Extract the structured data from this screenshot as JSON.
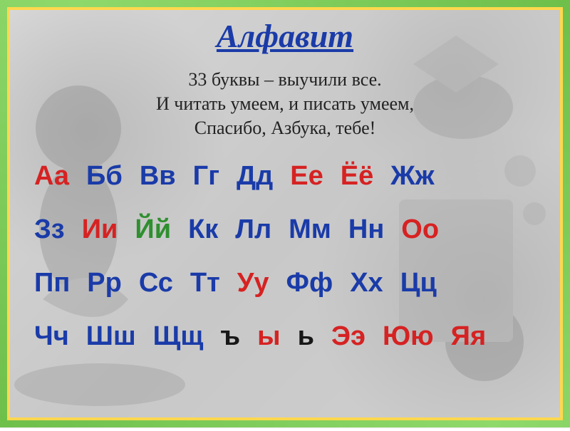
{
  "colors": {
    "red": "#d62222",
    "blue": "#1a3ba8",
    "green": "#2f8f2f",
    "black": "#171717",
    "frame_green": "#6fbf4b",
    "frame_yellow": "#ffd84d",
    "bg_gray": "#d0d0d0"
  },
  "title": "Алфавит",
  "title_fontsize": 46,
  "subtitle": {
    "line1": "33 буквы – выучили все.",
    "line2": "И читать умеем, и писать умеем,",
    "line3": "Спасибо, Азбука, тебе!",
    "fontsize": 26
  },
  "alphabet": {
    "fontsize": 38,
    "rows": [
      [
        {
          "text": "Аа",
          "color": "red"
        },
        {
          "text": "Бб",
          "color": "blue"
        },
        {
          "text": "Вв",
          "color": "blue"
        },
        {
          "text": "Гг",
          "color": "blue"
        },
        {
          "text": "Дд",
          "color": "blue"
        },
        {
          "text": "Ее",
          "color": "red"
        },
        {
          "text": "Ёё",
          "color": "red"
        },
        {
          "text": "Жж",
          "color": "blue"
        }
      ],
      [
        {
          "text": "Зз",
          "color": "blue"
        },
        {
          "text": "Ии",
          "color": "red"
        },
        {
          "text": "Йй",
          "color": "green"
        },
        {
          "text": "Кк",
          "color": "blue"
        },
        {
          "text": "Лл",
          "color": "blue"
        },
        {
          "text": "Мм",
          "color": "blue"
        },
        {
          "text": "Нн",
          "color": "blue"
        },
        {
          "text": "Оо",
          "color": "red"
        }
      ],
      [
        {
          "text": "Пп",
          "color": "blue"
        },
        {
          "text": "Рр",
          "color": "blue"
        },
        {
          "text": "Сс",
          "color": "blue"
        },
        {
          "text": "Тт",
          "color": "blue"
        },
        {
          "text": "Уу",
          "color": "red"
        },
        {
          "text": "Фф",
          "color": "blue"
        },
        {
          "text": "Хх",
          "color": "blue"
        },
        {
          "text": "Цц",
          "color": "blue"
        }
      ],
      [
        {
          "text": "Чч",
          "color": "blue"
        },
        {
          "text": "Шш",
          "color": "blue"
        },
        {
          "text": "Щщ",
          "color": "blue"
        },
        {
          "text": "ъ",
          "color": "black"
        },
        {
          "text": "ы",
          "color": "red"
        },
        {
          "text": "ь",
          "color": "black"
        },
        {
          "text": "Ээ",
          "color": "red"
        },
        {
          "text": "Юю",
          "color": "red"
        },
        {
          "text": "Яя",
          "color": "red"
        }
      ]
    ]
  }
}
